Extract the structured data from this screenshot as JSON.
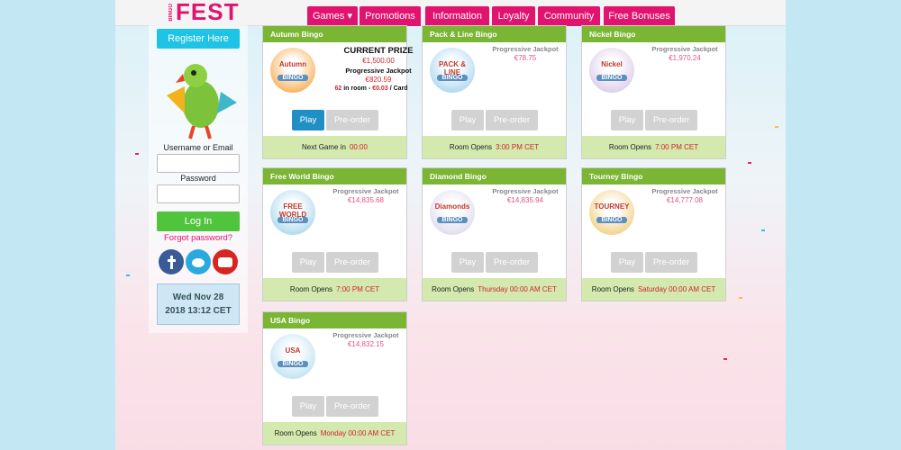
{
  "header": {
    "logo_small": "BINGO",
    "logo": "FEST",
    "nav": [
      "Games ▾",
      "Promotions",
      "Information",
      "Loyalty",
      "Community",
      "Free Bonuses"
    ]
  },
  "sidebar": {
    "register": "Register Here",
    "username_label": "Username or Email",
    "password_label": "Password",
    "login": "Log In",
    "forgot": "Forgot password?",
    "date_line1": "Wed Nov 28",
    "date_line2": "2018 13:12 CET"
  },
  "cards": [
    {
      "title": "Autumn Bingo",
      "logo_top": "Autumn",
      "logo_bottom": "BINGO",
      "prize_label": "CURRENT PRIZE",
      "prize": "€1,500.00",
      "jackpot_label": "Progressive Jackpot",
      "jackpot": "€820.59",
      "in_room": "62",
      "in_room_label": "in room -",
      "price": "€0.03",
      "price_unit": "/ Card",
      "play": "Play",
      "preorder": "Pre-order",
      "footer_label": "Next Game in",
      "footer_value": "00:00"
    },
    {
      "title": "Pack & Line Bingo",
      "logo_top": "PACK & LINE",
      "logo_bottom": "BINGO",
      "jackpot_label": "Progressive Jackpot",
      "jackpot": "€78.75",
      "play": "Play",
      "preorder": "Pre-order",
      "footer_label": "Room Opens",
      "footer_value": "3:00 PM CET"
    },
    {
      "title": "Nickel Bingo",
      "logo_top": "Nickel",
      "logo_bottom": "BINGO",
      "jackpot_label": "Progressive Jackpot",
      "jackpot": "€1,970.24",
      "play": "Play",
      "preorder": "Pre-order",
      "footer_label": "Room Opens",
      "footer_value": "7:00 PM CET"
    },
    {
      "title": "Free World Bingo",
      "logo_top": "FREE WORLD",
      "logo_bottom": "BINGO",
      "jackpot_label": "Progressive Jackpot",
      "jackpot": "€14,835.68",
      "play": "Play",
      "preorder": "Pre-order",
      "footer_label": "Room Opens",
      "footer_value": "7:00 PM CET"
    },
    {
      "title": "Diamond Bingo",
      "logo_top": "Diamonds",
      "logo_bottom": "BINGO",
      "jackpot_label": "Progressive Jackpot",
      "jackpot": "€14,835.94",
      "play": "Play",
      "preorder": "Pre-order",
      "footer_label": "Room Opens",
      "footer_value": "Thursday 00:00 AM CET"
    },
    {
      "title": "Tourney Bingo",
      "logo_top": "TOURNEY",
      "logo_bottom": "BINGO",
      "jackpot_label": "Progressive Jackpot",
      "jackpot": "€14,777.08",
      "play": "Play",
      "preorder": "Pre-order",
      "footer_label": "Room Opens",
      "footer_value": "Saturday 00:00 AM CET"
    },
    {
      "title": "USA Bingo",
      "logo_top": "USA",
      "logo_bottom": "BINGO",
      "jackpot_label": "Progressive Jackpot",
      "jackpot": "€14,832.15",
      "play": "Play",
      "preorder": "Pre-order",
      "footer_label": "Room Opens",
      "footer_value": "Monday 00:00 AM CET"
    }
  ]
}
